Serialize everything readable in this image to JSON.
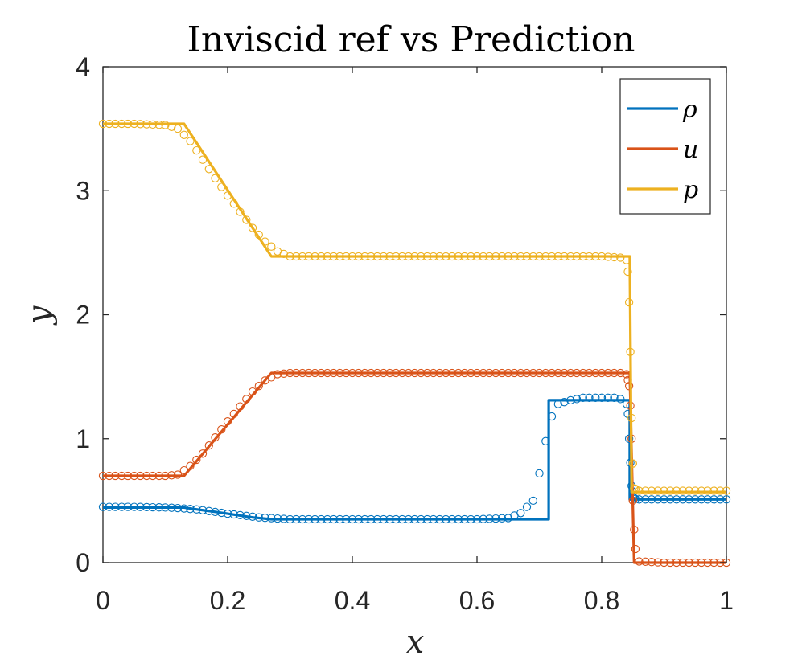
{
  "chart_data": {
    "type": "line",
    "title": "Inviscid ref vs Prediction",
    "xlabel": "x",
    "ylabel": "y",
    "xlim": [
      0,
      1
    ],
    "ylim": [
      0,
      4
    ],
    "xticks": [
      0,
      0.2,
      0.4,
      0.6,
      0.8,
      1
    ],
    "xtick_labels": [
      "0",
      "0.2",
      "0.4",
      "0.6",
      "0.8",
      "1"
    ],
    "yticks": [
      0,
      1,
      2,
      3,
      4
    ],
    "ytick_labels": [
      "0",
      "1",
      "2",
      "3",
      "4"
    ],
    "grid": false,
    "legend_position": "top-right",
    "colors": {
      "rho": "#0072BD",
      "u": "#D95319",
      "p": "#EDB120",
      "axis": "#262626"
    },
    "series": [
      {
        "key": "rho",
        "name": "ρ",
        "color": "#0072BD",
        "reference": {
          "x": [
            0,
            0.13,
            0.15,
            0.18,
            0.2,
            0.22,
            0.24,
            0.27,
            0.715,
            0.715,
            0.845,
            0.845,
            1
          ],
          "y": [
            0.445,
            0.445,
            0.43,
            0.41,
            0.395,
            0.38,
            0.365,
            0.35,
            0.35,
            1.31,
            1.31,
            0.51,
            0.51
          ]
        },
        "prediction": {
          "x": [
            0,
            0.05,
            0.1,
            0.12,
            0.15,
            0.2,
            0.25,
            0.3,
            0.35,
            0.4,
            0.45,
            0.5,
            0.55,
            0.6,
            0.65,
            0.67,
            0.69,
            0.7,
            0.71,
            0.72,
            0.73,
            0.75,
            0.77,
            0.8,
            0.82,
            0.83,
            0.84,
            0.842,
            0.845,
            0.848,
            0.85,
            0.855,
            0.86,
            0.9,
            0.95,
            1
          ],
          "y": [
            0.45,
            0.45,
            0.445,
            0.44,
            0.43,
            0.395,
            0.365,
            0.35,
            0.35,
            0.35,
            0.35,
            0.35,
            0.35,
            0.35,
            0.36,
            0.4,
            0.5,
            0.72,
            0.98,
            1.18,
            1.28,
            1.31,
            1.33,
            1.33,
            1.33,
            1.32,
            1.28,
            1.2,
            0.9,
            0.62,
            0.53,
            0.51,
            0.51,
            0.51,
            0.51,
            0.51
          ]
        }
      },
      {
        "key": "u",
        "name": "u",
        "color": "#D95319",
        "reference": {
          "x": [
            0,
            0.13,
            0.27,
            0.845,
            0.852,
            1
          ],
          "y": [
            0.7,
            0.7,
            1.53,
            1.53,
            0,
            0
          ]
        },
        "prediction": {
          "x": [
            0,
            0.05,
            0.1,
            0.12,
            0.14,
            0.16,
            0.18,
            0.2,
            0.22,
            0.24,
            0.26,
            0.28,
            0.3,
            0.35,
            0.4,
            0.5,
            0.6,
            0.7,
            0.8,
            0.83,
            0.84,
            0.845,
            0.848,
            0.85,
            0.853,
            0.856,
            0.86,
            0.9,
            0.95,
            1
          ],
          "y": [
            0.7,
            0.7,
            0.7,
            0.71,
            0.78,
            0.88,
            1.01,
            1.14,
            1.26,
            1.38,
            1.47,
            1.52,
            1.53,
            1.53,
            1.53,
            1.53,
            1.53,
            1.53,
            1.53,
            1.53,
            1.52,
            1.4,
            1.0,
            0.5,
            0.15,
            0.03,
            0.01,
            0.0,
            0.0,
            0.0
          ]
        }
      },
      {
        "key": "p",
        "name": "p",
        "color": "#EDB120",
        "reference": {
          "x": [
            0,
            0.13,
            0.27,
            0.845,
            0.848,
            1
          ],
          "y": [
            3.54,
            3.54,
            2.47,
            2.47,
            0.57,
            0.57
          ]
        },
        "prediction": {
          "x": [
            0,
            0.05,
            0.1,
            0.12,
            0.14,
            0.16,
            0.18,
            0.2,
            0.22,
            0.24,
            0.26,
            0.28,
            0.3,
            0.35,
            0.4,
            0.5,
            0.6,
            0.7,
            0.8,
            0.83,
            0.84,
            0.843,
            0.846,
            0.849,
            0.852,
            0.86,
            0.9,
            0.95,
            1
          ],
          "y": [
            3.54,
            3.54,
            3.53,
            3.5,
            3.4,
            3.25,
            3.1,
            2.96,
            2.83,
            2.7,
            2.59,
            2.51,
            2.47,
            2.47,
            2.47,
            2.47,
            2.47,
            2.47,
            2.47,
            2.46,
            2.44,
            2.3,
            1.7,
            0.9,
            0.6,
            0.58,
            0.58,
            0.58,
            0.58
          ]
        }
      }
    ]
  }
}
